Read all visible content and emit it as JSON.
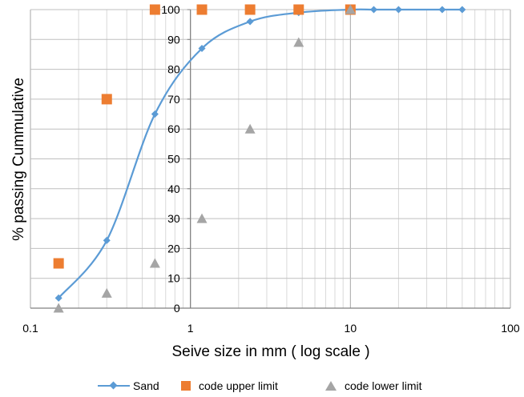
{
  "chart_data": {
    "type": "scatter",
    "xscale": "log",
    "xlim": [
      0.1,
      100
    ],
    "ylim": [
      0,
      100
    ],
    "xlabel": "Seive size in mm ( log scale )",
    "ylabel": "% passing Cummulative",
    "x_ticks": [
      "0.1",
      "1",
      "10",
      "100"
    ],
    "y_ticks": [
      "0",
      "10",
      "20",
      "30",
      "40",
      "50",
      "60",
      "70",
      "80",
      "90",
      "100"
    ],
    "grid": true,
    "legend_position": "bottom",
    "series": [
      {
        "name": "Sand",
        "marker": "diamond",
        "line": "smooth",
        "color": "#5B9BD5",
        "x": [
          0.15,
          0.3,
          0.6,
          1.18,
          2.36,
          4.75,
          10,
          14,
          20,
          37.5,
          50
        ],
        "y": [
          3.4,
          22.7,
          65,
          87,
          96,
          99,
          100,
          100,
          100,
          100,
          100
        ]
      },
      {
        "name": "code upper limit",
        "marker": "square",
        "line": "none",
        "color": "#ED7D31",
        "x": [
          0.15,
          0.3,
          0.6,
          1.18,
          2.36,
          4.75,
          10
        ],
        "y": [
          15,
          70,
          100,
          100,
          100,
          100,
          100
        ]
      },
      {
        "name": "code lower limit",
        "marker": "triangle",
        "line": "none",
        "color": "#A5A5A5",
        "x": [
          0.15,
          0.3,
          0.6,
          1.18,
          2.36,
          4.75,
          10
        ],
        "y": [
          0,
          5,
          15,
          30,
          60,
          89,
          100
        ]
      }
    ]
  }
}
